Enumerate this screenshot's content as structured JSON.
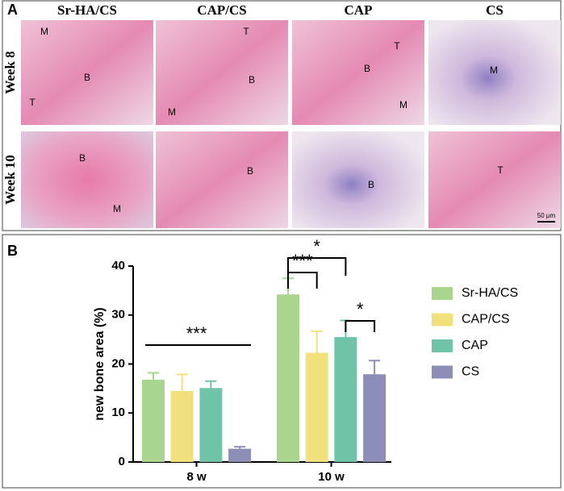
{
  "panel_labels": [
    "A",
    "B"
  ],
  "panel_a": {
    "columns": [
      "Sr-HA/CS",
      "CAP/CS",
      "CAP",
      "CS"
    ],
    "rows": [
      "Week 8",
      "Week 10"
    ],
    "image_labels": [
      [
        [
          "M",
          "B",
          "T"
        ],
        [
          "T",
          "B",
          "M"
        ],
        [
          "T",
          "B",
          "M"
        ],
        [
          "M"
        ]
      ],
      [
        [
          "B",
          "M"
        ],
        [
          "B"
        ],
        [
          "B"
        ],
        [
          "T"
        ]
      ]
    ],
    "scale_bar": "50 μm"
  },
  "chart_data": {
    "type": "bar",
    "y_label": "new bone area (%)",
    "categories": [
      "8 w",
      "10 w"
    ],
    "series": [
      {
        "name": "Sr-HA/CS",
        "color": "#a9d58e",
        "values": [
          16.8,
          34.2
        ],
        "errors": [
          1.4,
          3.3
        ]
      },
      {
        "name": "CAP/CS",
        "color": "#f1e17c",
        "values": [
          14.5,
          22.3
        ],
        "errors": [
          3.4,
          4.4
        ]
      },
      {
        "name": "CAP",
        "color": "#6fc4a8",
        "values": [
          15.1,
          25.5
        ],
        "errors": [
          1.4,
          3.4
        ]
      },
      {
        "name": "CS",
        "color": "#8d8eb8",
        "values": [
          2.7,
          17.9
        ],
        "errors": [
          0.4,
          2.8
        ]
      }
    ],
    "ylim": [
      0,
      40
    ],
    "yticks": [
      0,
      10,
      20,
      30,
      40
    ],
    "annotations": [
      {
        "text": "***",
        "category": 0,
        "between": [
          0,
          3
        ]
      },
      {
        "text": "***",
        "category": 1,
        "between": [
          0,
          1
        ]
      },
      {
        "text": "*",
        "category": 1,
        "between": [
          0,
          2
        ]
      },
      {
        "text": "*",
        "category": 1,
        "between": [
          2,
          3
        ]
      }
    ],
    "legend": "right"
  }
}
